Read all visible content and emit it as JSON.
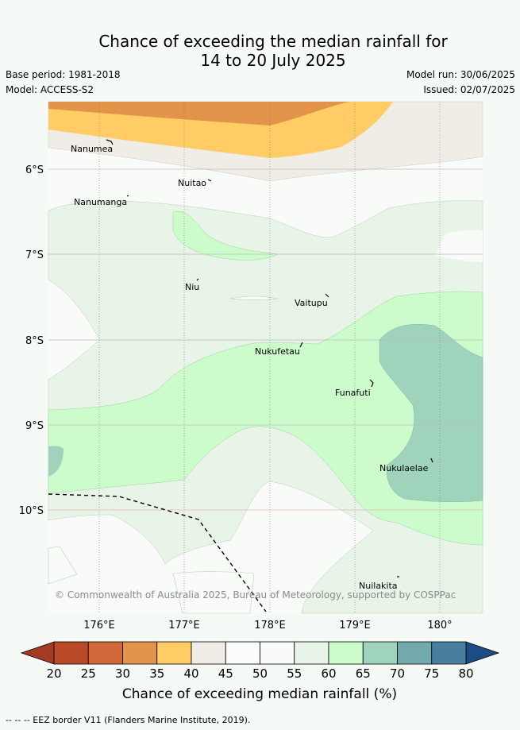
{
  "title_line1": "Chance of exceeding the median rainfall for",
  "title_line2": "14 to 20 July 2025",
  "base_period": "Base period: 1981-2018",
  "model": "Model: ACCESS-S2",
  "model_run": "Model run: 30/06/2025",
  "issued": "Issued: 02/07/2025",
  "lat_labels": [
    "6°S",
    "7°S",
    "8°S",
    "9°S",
    "10°S"
  ],
  "lon_labels": [
    "176°E",
    "177°E",
    "178°E",
    "179°E",
    "180°"
  ],
  "places": [
    "Nanumea",
    "Nuitao",
    "Nanumanga",
    "Niu",
    "Vaitupu",
    "Nukufetau",
    "Funafuti",
    "Nukulaelae",
    "Nuilakita"
  ],
  "copyright": "© Commonwealth of Australia 2025, Bureau of Meteorology, supported by COSPPac",
  "colorbar_ticks": [
    "20",
    "25",
    "30",
    "35",
    "40",
    "45",
    "50",
    "55",
    "60",
    "65",
    "70",
    "75",
    "80"
  ],
  "colorbar_colors": [
    "#b84a28",
    "#d0683a",
    "#e2944a",
    "#ffcc66",
    "#f0ece6",
    "#fafcf9",
    "#f8fbf7",
    "#e8f4e8",
    "#ccfccc",
    "#9fd3bc",
    "#72a9ad",
    "#4a7e9f",
    "#1c4c85"
  ],
  "colorbar_low_color": "#a33a22",
  "colorbar_high_color": "#1c4c85",
  "colorbar_label": "Chance of exceeding median rainfall (%)",
  "eez_note": "--  --  -- EEZ border V11 (Flanders Marine Institute, 2019)."
}
